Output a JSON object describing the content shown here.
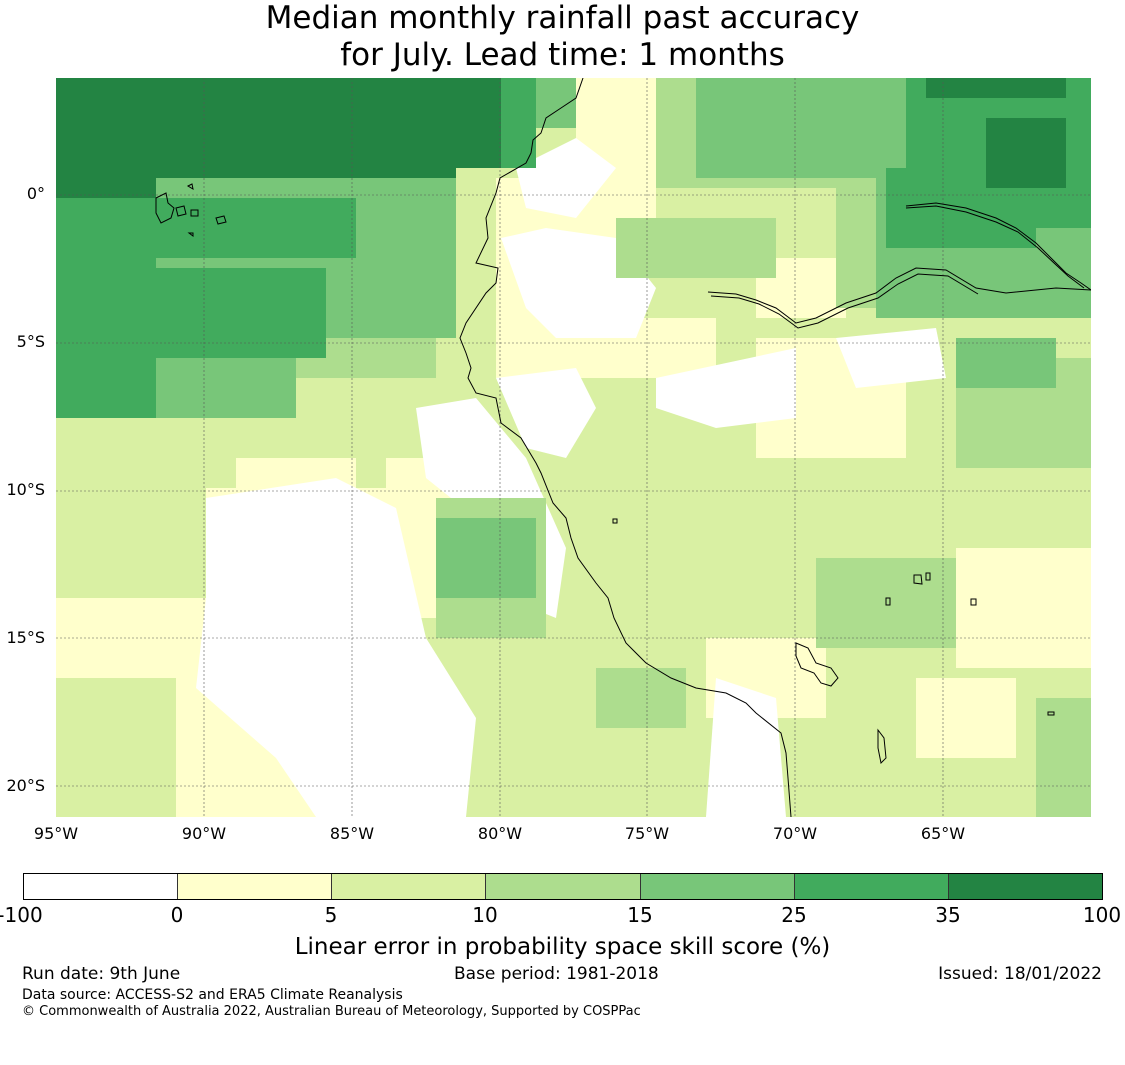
{
  "title_line1": "Median monthly rainfall past accuracy",
  "title_line2": "for July. Lead time: 1 months",
  "map": {
    "lat_labels": [
      "0°",
      "5°S",
      "10°S",
      "15°S",
      "20°S"
    ],
    "lon_labels": [
      "95°W",
      "90°W",
      "85°W",
      "80°W",
      "75°W",
      "70°W",
      "65°W"
    ],
    "gridlines": true
  },
  "colorbar": {
    "ticks": [
      "-100",
      "0",
      "5",
      "10",
      "15",
      "25",
      "35",
      "100"
    ],
    "colors": [
      "#ffffff",
      "#ffffcc",
      "#d9f0a3",
      "#addd8e",
      "#78c679",
      "#41ab5d",
      "#238443"
    ],
    "label": "Linear error in probability space skill score (%)"
  },
  "footer": {
    "run_date": "Run date: 9th June",
    "base_period": "Base period: 1981-2018",
    "issued": "Issued: 18/01/2022",
    "data_source": "Data source: ACCESS-S2 and ERA5 Climate Reanalysis",
    "copyright": "© Commonwealth of Australia 2022, Australian Bureau of Meteorology, Supported by COSPPac"
  }
}
